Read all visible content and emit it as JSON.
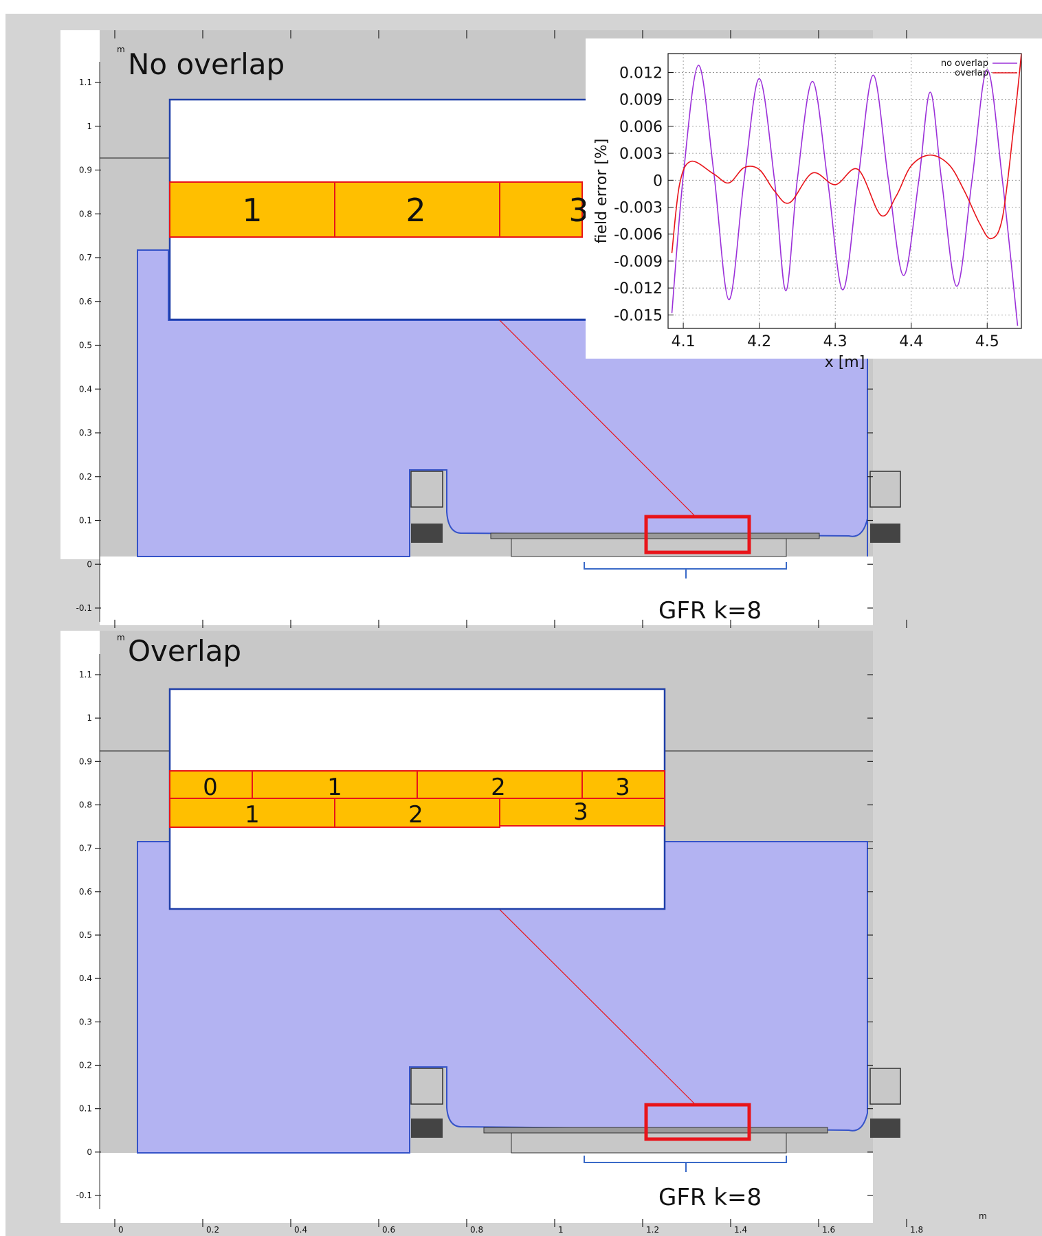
{
  "panels": [
    {
      "id": "top",
      "unit": "m",
      "title": "No overlap",
      "row1": [
        "1",
        "2",
        "3"
      ],
      "row2": [],
      "gfr_label": "GFR k=8"
    },
    {
      "id": "bottom",
      "unit": "m",
      "title": "Overlap",
      "row1": [
        "0",
        "1",
        "2",
        "3"
      ],
      "row2": [
        "1",
        "2",
        "3"
      ],
      "gfr_label": "GFR k=8"
    }
  ],
  "y_ticks": [
    "1.1",
    "1",
    "0.9",
    "0.8",
    "0.7",
    "0.6",
    "0.5",
    "0.4",
    "0.3",
    "0.2",
    "0.1",
    "0",
    "-0.1"
  ],
  "x_tick_labels": [
    "0",
    "0.2",
    "0.4",
    "0.6",
    "0.8",
    "1",
    "1.2",
    "1.4",
    "1.6",
    "1.8"
  ],
  "x_unit": "m",
  "colors": {
    "frame_grey": "#d4d4d4",
    "domain_grey": "#c8c8c8",
    "iron_blue": "#b3b3f2",
    "outline_blue": "#1f3fa8",
    "segment_orange": "#ffbf00",
    "segment_red": "#e8141a",
    "overlap_line": "#e8141a",
    "no_overlap_line": "#9b30d9"
  },
  "chart_data": {
    "type": "line",
    "xlabel": "x [m]",
    "ylabel": "field error [%]",
    "xlim": [
      4.08,
      4.545
    ],
    "ylim": [
      -0.0165,
      0.0141
    ],
    "x_ticks": [
      4.1,
      4.2,
      4.3,
      4.4,
      4.5
    ],
    "x_tick_labels": [
      "4.1",
      "4.2",
      "4.3",
      "4.4",
      "4.5"
    ],
    "y_ticks": [
      0.012,
      0.009,
      0.006,
      0.003,
      0,
      -0.003,
      -0.006,
      -0.009,
      -0.012,
      -0.015
    ],
    "y_tick_labels": [
      "0.012",
      "0.009",
      "0.006",
      "0.003",
      "0",
      "-0.003",
      "-0.006",
      "-0.009",
      "-0.012",
      "-0.015"
    ],
    "grid": true,
    "legend_position": "top-right",
    "series": [
      {
        "name": "no overlap",
        "color": "#9b30d9",
        "x": [
          4.085,
          4.1,
          4.12,
          4.14,
          4.16,
          4.18,
          4.2,
          4.22,
          4.235,
          4.25,
          4.27,
          4.29,
          4.31,
          4.33,
          4.35,
          4.37,
          4.39,
          4.41,
          4.425,
          4.44,
          4.46,
          4.48,
          4.5,
          4.52,
          4.54
        ],
        "y": [
          -0.0148,
          0.0005,
          0.0128,
          0.001,
          -0.0133,
          0.0,
          0.0113,
          0.0,
          -0.0123,
          0.0,
          0.011,
          0.0,
          -0.0122,
          0.0,
          0.0117,
          0.0,
          -0.0106,
          0.0,
          0.0098,
          0.0,
          -0.0118,
          0.0,
          0.0123,
          0.0,
          -0.0162
        ]
      },
      {
        "name": "overlap",
        "color": "#e8141a",
        "x": [
          4.085,
          4.095,
          4.11,
          4.14,
          4.16,
          4.18,
          4.2,
          4.22,
          4.24,
          4.27,
          4.3,
          4.33,
          4.36,
          4.38,
          4.4,
          4.425,
          4.45,
          4.47,
          4.49,
          4.505,
          4.52,
          4.535,
          4.545
        ],
        "y": [
          -0.0081,
          -0.0005,
          0.0021,
          0.0007,
          -0.0003,
          0.0014,
          0.0012,
          -0.0012,
          -0.0025,
          0.0008,
          -0.0005,
          0.0012,
          -0.0039,
          -0.0018,
          0.0016,
          0.0028,
          0.0017,
          -0.0012,
          -0.0048,
          -0.0065,
          -0.0042,
          0.006,
          0.0141
        ]
      }
    ]
  }
}
